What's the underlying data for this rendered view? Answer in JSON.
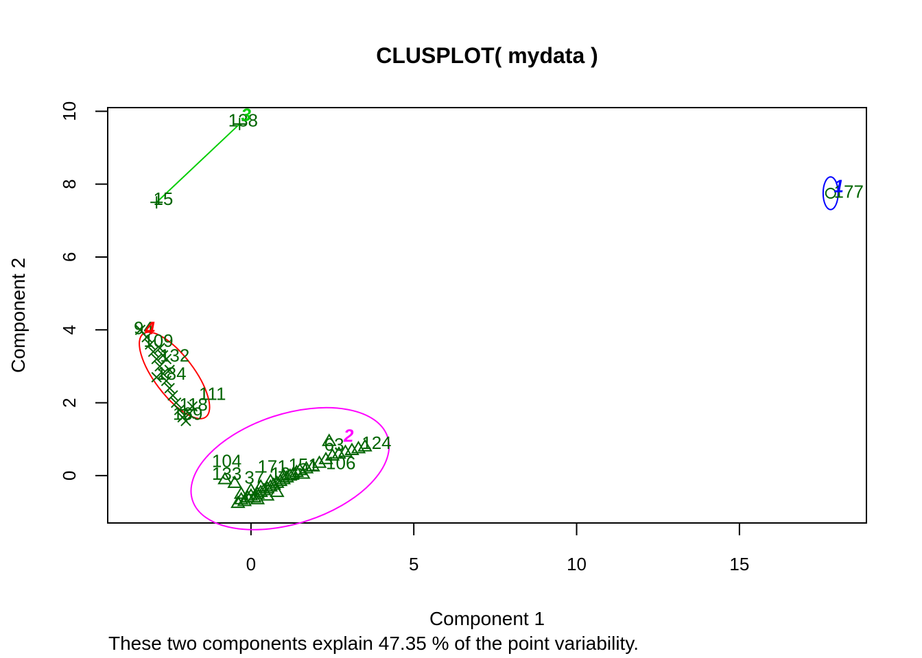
{
  "chart_data": {
    "type": "scatter",
    "title": "CLUSPLOT( mydata )",
    "xlabel": "Component 1",
    "ylabel": "Component 2",
    "subtitle": "These two components explain 47.35 % of the point variability.",
    "xlim": [
      -4.4,
      18.9
    ],
    "ylim": [
      -1.3,
      10.1
    ],
    "xticks": [
      0,
      5,
      10,
      15
    ],
    "yticks": [
      0,
      2,
      4,
      6,
      8,
      10
    ],
    "point_color": "#006400",
    "clusters": [
      {
        "name": "1",
        "color": "#0000FF",
        "shape": "circle",
        "label_pos": [
          18.05,
          7.95
        ],
        "ellipse": {
          "cx": 17.8,
          "cy": 7.75,
          "rx": 0.23,
          "ry": 0.14,
          "angle": 0
        },
        "points": [
          [
            17.8,
            7.75
          ]
        ],
        "labels": [
          {
            "text": "177",
            "x": 17.9,
            "y": 7.8
          }
        ]
      },
      {
        "name": "2",
        "color": "#FF00FF",
        "shape": "triangle",
        "label_pos": [
          3.0,
          1.1
        ],
        "ellipse": {
          "cx": 1.2,
          "cy": 0.19,
          "rx": 3.15,
          "ry": 0.47,
          "angle": 18
        },
        "points": [
          [
            -0.4,
            -0.75
          ],
          [
            -0.3,
            -0.65
          ],
          [
            -0.2,
            -0.7
          ],
          [
            -0.1,
            -0.6
          ],
          [
            0.0,
            -0.55
          ],
          [
            0.1,
            -0.6
          ],
          [
            0.2,
            -0.5
          ],
          [
            0.3,
            -0.45
          ],
          [
            0.4,
            -0.4
          ],
          [
            0.5,
            -0.35
          ],
          [
            0.6,
            -0.3
          ],
          [
            0.7,
            -0.25
          ],
          [
            0.8,
            -0.2
          ],
          [
            0.9,
            -0.15
          ],
          [
            1.0,
            -0.1
          ],
          [
            1.1,
            -0.05
          ],
          [
            1.2,
            0.0
          ],
          [
            1.3,
            0.05
          ],
          [
            1.4,
            0.1
          ],
          [
            1.5,
            0.15
          ],
          [
            1.7,
            0.2
          ],
          [
            1.9,
            0.25
          ],
          [
            2.1,
            0.35
          ],
          [
            2.3,
            0.45
          ],
          [
            2.5,
            0.55
          ],
          [
            2.7,
            0.6
          ],
          [
            2.9,
            0.65
          ],
          [
            3.1,
            0.7
          ],
          [
            3.3,
            0.75
          ],
          [
            3.5,
            0.8
          ],
          [
            -0.3,
            -0.5
          ],
          [
            0.0,
            -0.4
          ],
          [
            0.3,
            -0.3
          ],
          [
            0.6,
            -0.15
          ],
          [
            -0.8,
            -0.1
          ],
          [
            -0.5,
            -0.2
          ],
          [
            2.4,
            0.95
          ],
          [
            1.0,
            0.0
          ],
          [
            1.6,
            0.05
          ],
          [
            0.2,
            -0.65
          ],
          [
            0.5,
            -0.55
          ],
          [
            0.8,
            -0.45
          ]
        ],
        "labels": [
          {
            "text": "104",
            "x": -1.2,
            "y": 0.4
          },
          {
            "text": "133",
            "x": -1.2,
            "y": 0.05
          },
          {
            "text": "171",
            "x": 0.2,
            "y": 0.25
          },
          {
            "text": "151",
            "x": 1.15,
            "y": 0.3
          },
          {
            "text": "106",
            "x": 2.3,
            "y": 0.35
          },
          {
            "text": "63",
            "x": 2.25,
            "y": 0.85
          },
          {
            "text": "124",
            "x": 3.4,
            "y": 0.9
          },
          {
            "text": "121",
            "x": 0.6,
            "y": 0.05
          },
          {
            "text": "37",
            "x": -0.2,
            "y": -0.05
          }
        ]
      },
      {
        "name": "3",
        "color": "#00CD00",
        "shape": "plus",
        "label_pos": [
          -0.15,
          9.9
        ],
        "segment": [
          [
            -2.9,
            7.5
          ],
          [
            -0.35,
            9.65
          ]
        ],
        "points": [
          [
            -2.9,
            7.5
          ],
          [
            -0.35,
            9.65
          ]
        ],
        "labels": [
          {
            "text": "15",
            "x": -3.0,
            "y": 7.6
          },
          {
            "text": "138",
            "x": -0.7,
            "y": 9.75
          }
        ]
      },
      {
        "name": "4",
        "color": "#FF0000",
        "shape": "cross",
        "label_pos": [
          -3.1,
          4.05
        ],
        "ellipse": {
          "cx": -2.35,
          "cy": 2.75,
          "rx": 1.6,
          "ry": 0.17,
          "angle": -53
        },
        "points": [
          [
            -3.4,
            4.0
          ],
          [
            -3.2,
            3.8
          ],
          [
            -3.1,
            3.6
          ],
          [
            -3.0,
            3.4
          ],
          [
            -2.9,
            3.2
          ],
          [
            -2.8,
            3.0
          ],
          [
            -2.7,
            2.8
          ],
          [
            -2.6,
            2.6
          ],
          [
            -2.5,
            2.4
          ],
          [
            -2.4,
            2.2
          ],
          [
            -2.3,
            2.0
          ],
          [
            -2.2,
            1.8
          ],
          [
            -2.1,
            1.6
          ],
          [
            -2.0,
            1.5
          ],
          [
            -1.9,
            1.7
          ],
          [
            -1.8,
            1.9
          ],
          [
            -2.8,
            3.5
          ],
          [
            -2.6,
            3.2
          ],
          [
            -2.5,
            2.9
          ],
          [
            -2.9,
            2.7
          ],
          [
            -2.7,
            3.3
          ]
        ],
        "labels": [
          {
            "text": "94",
            "x": -3.6,
            "y": 4.05
          },
          {
            "text": "109",
            "x": -3.3,
            "y": 3.7
          },
          {
            "text": "132",
            "x": -2.8,
            "y": 3.3
          },
          {
            "text": "184",
            "x": -2.9,
            "y": 2.8
          },
          {
            "text": "111",
            "x": -1.6,
            "y": 2.25
          },
          {
            "text": "118",
            "x": -2.2,
            "y": 1.95
          },
          {
            "text": "169",
            "x": -2.4,
            "y": 1.7
          }
        ]
      }
    ]
  }
}
